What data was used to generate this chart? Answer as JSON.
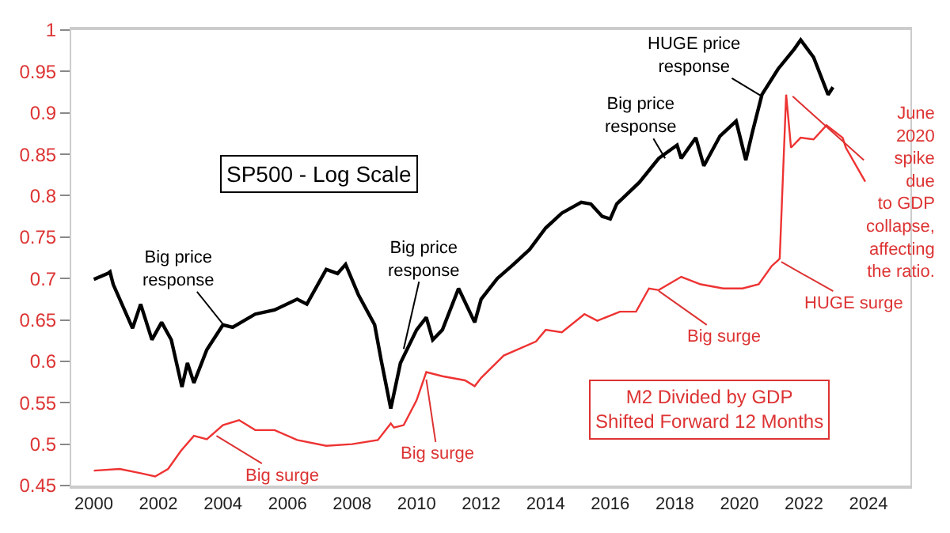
{
  "chart_data": {
    "type": "line",
    "series": [
      {
        "color": "#000000",
        "x": [
          2000.0,
          2000.43,
          2000.5,
          2000.6,
          2001.2,
          2001.45,
          2001.8,
          2002.1,
          2002.4,
          2002.73,
          2002.9,
          2003.1,
          2003.5,
          2004.0,
          2004.3,
          2005.0,
          2005.6,
          2006.3,
          2006.6,
          2007.2,
          2007.55,
          2007.8,
          2008.2,
          2008.7,
          2008.9,
          2009.2,
          2009.5,
          2010.0,
          2010.3,
          2010.5,
          2010.8,
          2011.3,
          2011.8,
          2012.0,
          2012.5,
          2013.0,
          2013.5,
          2014.0,
          2014.5,
          2015.1,
          2015.4,
          2015.75,
          2016.0,
          2016.2,
          2016.9,
          2017.5,
          2018.07,
          2018.2,
          2018.65,
          2018.9,
          2019.4,
          2019.9,
          2020.2,
          2020.4,
          2020.7,
          2021.2,
          2021.7,
          2021.9,
          2022.3,
          2022.75,
          2022.9
        ],
        "values": [
          0.699,
          0.706,
          0.708,
          0.693,
          0.64,
          0.669,
          0.626,
          0.647,
          0.626,
          0.569,
          0.598,
          0.574,
          0.614,
          0.644,
          0.641,
          0.657,
          0.662,
          0.675,
          0.669,
          0.711,
          0.706,
          0.717,
          0.68,
          0.644,
          0.602,
          0.543,
          0.598,
          0.638,
          0.653,
          0.626,
          0.638,
          0.688,
          0.647,
          0.675,
          0.7,
          0.717,
          0.735,
          0.761,
          0.779,
          0.792,
          0.79,
          0.775,
          0.772,
          0.79,
          0.816,
          0.845,
          0.861,
          0.845,
          0.87,
          0.836,
          0.872,
          0.89,
          0.843,
          0.876,
          0.922,
          0.953,
          0.977,
          0.988,
          0.967,
          0.922,
          0.931
        ]
      },
      {
        "color": "#ee3333",
        "x": [
          2000.0,
          2000.8,
          2001.45,
          2001.9,
          2002.3,
          2002.7,
          2003.1,
          2003.5,
          2004.0,
          2004.5,
          2005.0,
          2005.6,
          2006.3,
          2007.2,
          2008.0,
          2008.8,
          2009.2,
          2009.3,
          2009.6,
          2010.0,
          2010.3,
          2010.8,
          2011.5,
          2011.8,
          2012.0,
          2012.7,
          2013.7,
          2014.0,
          2014.5,
          2015.2,
          2015.6,
          2016.3,
          2016.8,
          2017.2,
          2017.5,
          2018.2,
          2018.8,
          2019.5,
          2020.1,
          2020.6,
          2021.0,
          2021.2,
          2021.25,
          2021.45,
          2021.6,
          2021.9,
          2022.3,
          2022.7,
          2023.2,
          2023.3,
          2023.9
        ],
        "values": [
          0.468,
          0.47,
          0.465,
          0.461,
          0.47,
          0.492,
          0.51,
          0.506,
          0.523,
          0.529,
          0.517,
          0.517,
          0.505,
          0.498,
          0.5,
          0.505,
          0.525,
          0.52,
          0.523,
          0.553,
          0.587,
          0.582,
          0.577,
          0.57,
          0.58,
          0.607,
          0.624,
          0.638,
          0.635,
          0.657,
          0.649,
          0.66,
          0.66,
          0.688,
          0.686,
          0.702,
          0.693,
          0.688,
          0.688,
          0.693,
          0.715,
          0.722,
          0.724,
          0.922,
          0.858,
          0.87,
          0.868,
          0.885,
          0.87,
          0.858,
          0.817
        ]
      }
    ],
    "xlim": [
      1999.3,
      2025.3
    ],
    "xticks": [
      2000,
      2002,
      2004,
      2006,
      2008,
      2010,
      2012,
      2014,
      2016,
      2018,
      2020,
      2022,
      2024
    ],
    "ylim": [
      0.45,
      1.0
    ],
    "yticks": [
      0.45,
      0.5,
      0.55,
      0.6,
      0.65,
      0.7,
      0.75,
      0.8,
      0.85,
      0.9,
      0.95,
      1
    ],
    "marker": "none",
    "line_style": "solid",
    "annotations": [
      "SP500 - Log Scale",
      "M2 Divided by GDP\nShifted Forward 12 Months",
      {
        "text": "Big price\nresponse",
        "x": 2004.0,
        "y": 0.645
      },
      {
        "text": "Big price\nresponse",
        "x": 2009.6,
        "y": 0.615
      },
      {
        "text": "Big price\nresponse",
        "x": 2017.7,
        "y": 0.845
      },
      {
        "text": "HUGE price\nresponse",
        "x": 2020.7,
        "y": 0.92
      },
      {
        "text": "Big surge",
        "x": 2003.8,
        "y": 0.51
      },
      {
        "text": "Big surge",
        "x": 2010.3,
        "y": 0.578
      },
      {
        "text": "Big surge",
        "x": 2017.5,
        "y": 0.685
      },
      {
        "text": "HUGE surge",
        "x": 2021.3,
        "y": 0.72
      },
      {
        "text": "June\n2020\nspike\ndue\nto GDP\ncollapse,\naffecting\nthe ratio.",
        "x": 2021.65,
        "y": 0.92
      }
    ]
  }
}
